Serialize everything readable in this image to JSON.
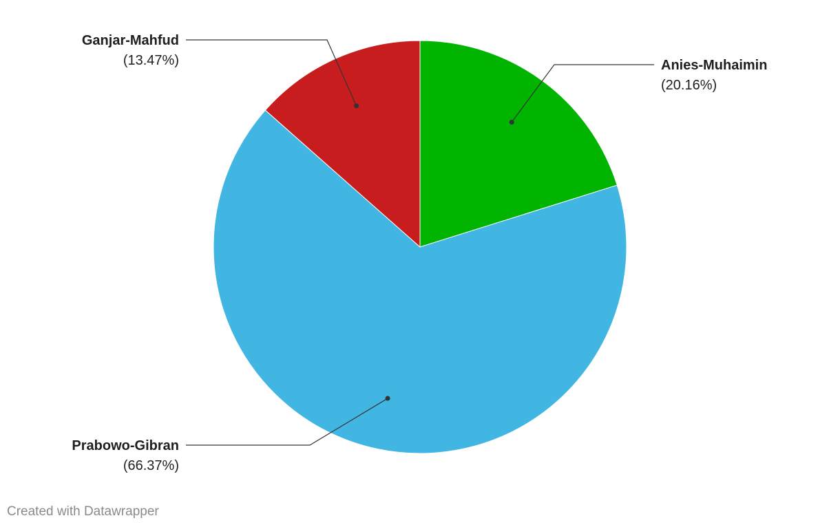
{
  "chart_data": {
    "type": "pie",
    "categories": [
      "Anies-Muhaimin",
      "Prabowo-Gibran",
      "Ganjar-Mahfud"
    ],
    "values": [
      20.16,
      66.37,
      13.47
    ],
    "value_labels": [
      "(20.16%)",
      "(66.37%)",
      "(13.47%)"
    ],
    "colors": [
      "#00b400",
      "#41b6e2",
      "#c71d1e"
    ],
    "footer": "Created with Datawrapper"
  }
}
